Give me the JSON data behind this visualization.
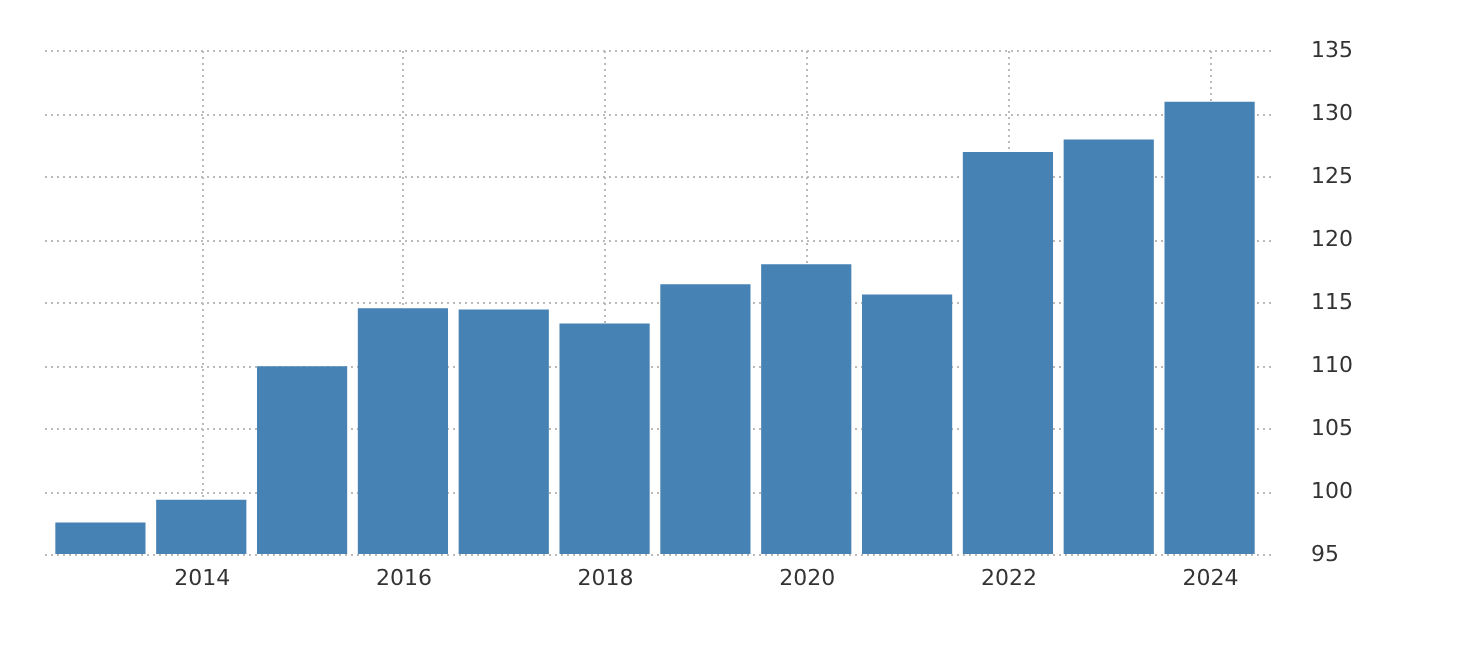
{
  "chart_data": {
    "type": "bar",
    "x": [
      2013,
      2014,
      2015,
      2016,
      2017,
      2018,
      2019,
      2020,
      2021,
      2022,
      2023,
      2024
    ],
    "values": [
      97.5,
      99.3,
      109.9,
      114.5,
      114.4,
      113.3,
      116.4,
      118.0,
      115.6,
      126.9,
      127.9,
      130.9
    ],
    "color": "#4682b4",
    "xlim": [
      2012.5,
      2024.5
    ],
    "xticks": [
      2014,
      2016,
      2018,
      2020,
      2022,
      2024
    ],
    "ylim": [
      95,
      135
    ],
    "yticks": [
      95,
      100,
      105,
      110,
      115,
      120,
      125,
      130,
      135
    ],
    "grid": true
  }
}
